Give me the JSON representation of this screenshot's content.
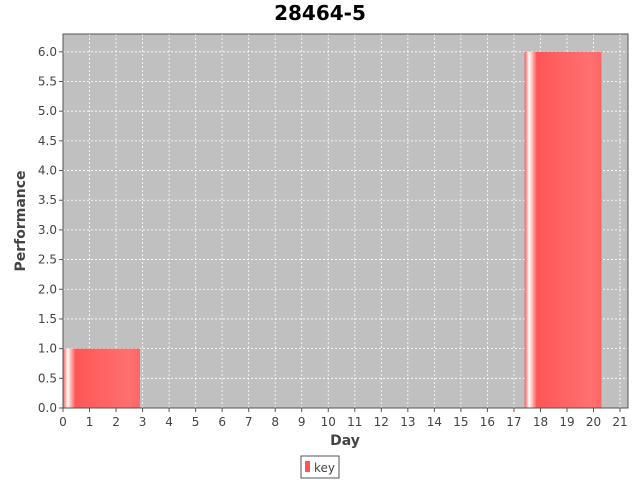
{
  "chart_data": {
    "type": "bar",
    "title": "28464-5",
    "xlabel": "Day",
    "ylabel": "Performance",
    "xlim": [
      0,
      21.3
    ],
    "ylim": [
      0,
      6.3
    ],
    "x_ticks": [
      0,
      1,
      2,
      3,
      4,
      5,
      6,
      7,
      8,
      9,
      10,
      11,
      12,
      13,
      14,
      15,
      16,
      17,
      18,
      19,
      20,
      21
    ],
    "y_ticks": [
      "0.0",
      "0.5",
      "1.0",
      "1.5",
      "2.0",
      "2.5",
      "3.0",
      "3.5",
      "4.0",
      "4.5",
      "5.0",
      "5.5",
      "6.0"
    ],
    "grid": true,
    "legend_position": "bottom",
    "series": [
      {
        "name": "key",
        "color": "#ff5555",
        "bars": [
          {
            "x_start": 0,
            "x_end": 2.9,
            "value": 1.0
          },
          {
            "x_start": 17.4,
            "x_end": 20.3,
            "value": 6.0
          }
        ]
      }
    ],
    "colors": {
      "plot_background": "#c0c0c0",
      "grid": "#ffffff",
      "bar": "#ff5555"
    }
  }
}
